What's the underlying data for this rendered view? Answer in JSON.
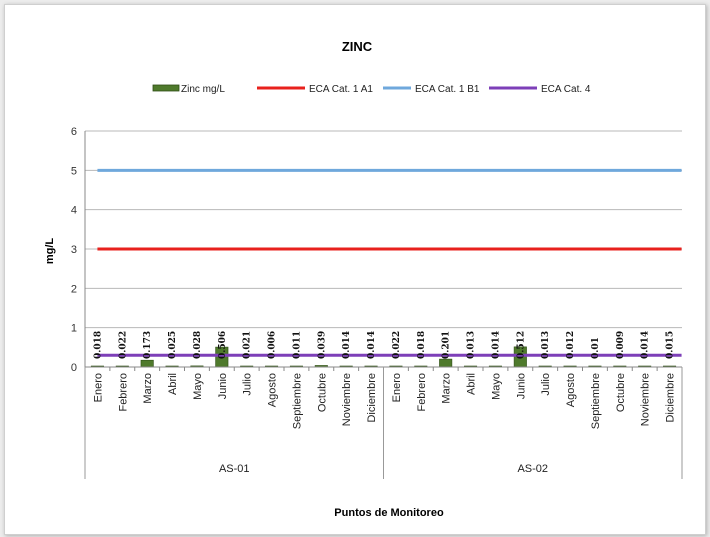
{
  "chart_data": {
    "type": "bar",
    "title": "ZINC",
    "ylabel": "mg/L",
    "xlabel": "Puntos de Monitoreo",
    "ylim": [
      0,
      6
    ],
    "yticks": [
      "0",
      "1",
      "2",
      "3",
      "4",
      "5",
      "6"
    ],
    "grid": true,
    "legend_position": "top",
    "groups": [
      "AS-01",
      "AS-02"
    ],
    "months": [
      "Enero",
      "Febrero",
      "Marzo",
      "Abril",
      "Mayo",
      "Junio",
      "Julio",
      "Agosto",
      "Septiembre",
      "Octubre",
      "Noviembre",
      "Diciembre"
    ],
    "bar_series": {
      "name": "Zinc mg/L",
      "color": "#4f7a2c",
      "values": [
        0.018,
        0.022,
        0.173,
        0.025,
        0.028,
        0.506,
        0.021,
        0.006,
        0.011,
        0.039,
        0.014,
        0.014,
        0.022,
        0.018,
        0.201,
        0.013,
        0.014,
        0.512,
        0.013,
        0.012,
        0.01,
        0.009,
        0.014,
        0.015
      ],
      "labels": [
        "0.018",
        "0.022",
        "0.173",
        "0.025",
        "0.028",
        "0.506",
        "0.021",
        "0.006",
        "0.011",
        "0.039",
        "0.014",
        "0.014",
        "0.022",
        "0.018",
        "0.201",
        "0.013",
        "0.014",
        "0.512",
        "0.013",
        "0.012",
        "0.01",
        "0.009",
        "0.014",
        "0.015"
      ]
    },
    "line_series": [
      {
        "name": "ECA Cat. 1 A1",
        "value": 3,
        "color": "#e8211d"
      },
      {
        "name": "ECA Cat. 1 B1",
        "value": 5,
        "color": "#6fa8dc"
      },
      {
        "name": "ECA Cat. 4",
        "value": 0.3,
        "color": "#7d3fb8"
      }
    ]
  }
}
